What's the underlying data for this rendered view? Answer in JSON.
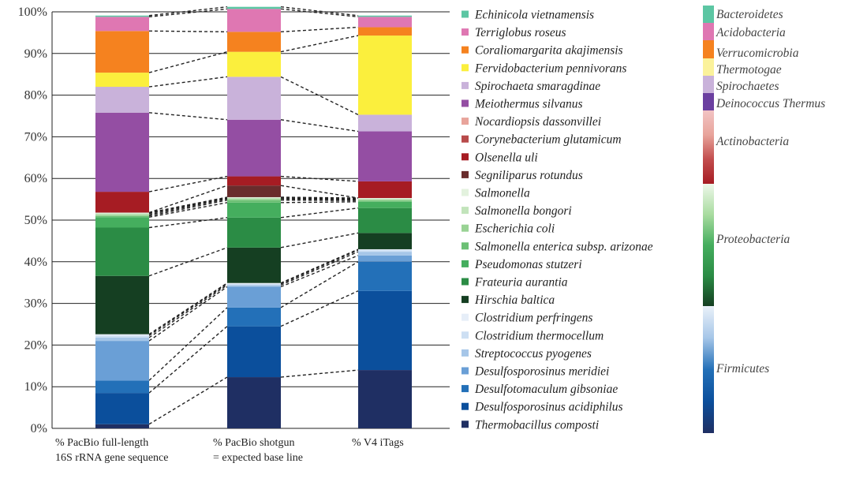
{
  "chart_data": {
    "type": "bar",
    "stacked": true,
    "normalized": true,
    "ylim": [
      0,
      100
    ],
    "yticks": [
      "0%",
      "10%",
      "20%",
      "30%",
      "40%",
      "50%",
      "60%",
      "70%",
      "80%",
      "90%",
      "100%"
    ],
    "grid": true,
    "legend_placement": "right",
    "connector_lines": "dashed lines join matching segment boundaries of adjacent bars",
    "categories": [
      [
        "% PacBio full-length",
        "16S rRNA gene sequence"
      ],
      [
        "% PacBio shotgun",
        "= expected base line"
      ],
      [
        "% V4 iTags"
      ]
    ],
    "series": [
      {
        "name": "Thermobacillus composti",
        "color": "#1f2f63",
        "values": [
          1.0,
          12.3,
          14.0
        ]
      },
      {
        "name": "Desulfosporosinus acidiphilus",
        "color": "#0b4f9c",
        "values": [
          7.5,
          12.2,
          19.0
        ]
      },
      {
        "name": "Desulfotomaculum gibsoniae",
        "color": "#2370b8",
        "values": [
          3.0,
          4.5,
          7.0
        ]
      },
      {
        "name": "Desulfosporosinus meridiei",
        "color": "#6a9fd6",
        "values": [
          9.5,
          5.0,
          1.5
        ]
      },
      {
        "name": "Streptococcus pyogenes",
        "color": "#a6c6e8",
        "values": [
          0.8,
          0.4,
          0.9
        ]
      },
      {
        "name": "Clostridium thermocellum",
        "color": "#cddff3",
        "values": [
          0.5,
          0.3,
          0.4
        ]
      },
      {
        "name": "Clostridium perfringens",
        "color": "#e6eef8",
        "values": [
          0.3,
          0.2,
          0.2
        ]
      },
      {
        "name": "Hirschia baltica",
        "color": "#153f22",
        "values": [
          14.0,
          8.5,
          3.9
        ]
      },
      {
        "name": "Frateuria aurantia",
        "color": "#2b8c45",
        "values": [
          11.6,
          7.2,
          6.0
        ]
      },
      {
        "name": "Pseudomonas stutzeri",
        "color": "#45ae5e",
        "values": [
          2.5,
          3.6,
          1.5
        ]
      },
      {
        "name": "Salmonella enterica subsp. arizonae",
        "color": "#6cc075",
        "values": [
          0.3,
          0.6,
          0.3
        ]
      },
      {
        "name": "Escherichia coli",
        "color": "#99d394",
        "values": [
          0.3,
          0.3,
          0.2
        ]
      },
      {
        "name": "Salmonella bongori",
        "color": "#c2e4bb",
        "values": [
          0.3,
          0.2,
          0.2
        ]
      },
      {
        "name": "Salmonella",
        "color": "#e3f2de",
        "values": [
          0.2,
          0.2,
          0.2
        ]
      },
      {
        "name": "Segniliparus rotundus",
        "color": "#6a2c2c",
        "values": [
          0.0,
          2.8,
          0.0
        ]
      },
      {
        "name": "Olsenella uli",
        "color": "#a61c23",
        "values": [
          5.0,
          2.2,
          4.0
        ]
      },
      {
        "name": "Corynebacterium glutamicum",
        "color": "#b84a4a",
        "values": [
          0.0,
          0.0,
          0.0
        ]
      },
      {
        "name": "Nocardiopsis dassonvillei",
        "color": "#e8a49b",
        "values": [
          0.0,
          0.0,
          0.0
        ]
      },
      {
        "name": "Meiothermus silvanus",
        "color": "#944ea3",
        "values": [
          19.0,
          13.6,
          12.0
        ]
      },
      {
        "name": "Spirochaeta smaragdinae",
        "color": "#c9b2da",
        "values": [
          6.2,
          10.3,
          4.0
        ]
      },
      {
        "name": "Fervidobacterium pennivorans",
        "color": "#fbef3d",
        "values": [
          3.4,
          6.0,
          19.0
        ]
      },
      {
        "name": "Coraliomargarita akajimensis",
        "color": "#f5821f",
        "values": [
          10.0,
          4.8,
          2.0
        ]
      },
      {
        "name": "Terriglobus roseus",
        "color": "#df77b2",
        "values": [
          3.4,
          5.5,
          2.5
        ]
      },
      {
        "name": "Echinicola vietnamensis",
        "color": "#5cc6a3",
        "values": [
          0.3,
          0.5,
          0.3
        ]
      }
    ],
    "phyla": [
      {
        "name": "Bacteroidetes",
        "color": "#5cc6a3"
      },
      {
        "name": "Acidobacteria",
        "color": "#df77b2"
      },
      {
        "name": "Verrucomicrobia",
        "color": "#f5821f"
      },
      {
        "name": "Thermotogae",
        "color": "#fbf29b"
      },
      {
        "name": "Spirochaetes",
        "color": "#c9b2da"
      },
      {
        "name": "Deinococcus Thermus",
        "color": "#6b3fa0"
      },
      {
        "name": "Actinobacteria",
        "colors": [
          "#f2c4c4",
          "#e8a49b",
          "#c24d4d",
          "#a61c23"
        ]
      },
      {
        "name": "Proteobacteria",
        "colors": [
          "#eef7ea",
          "#a9dca0",
          "#45ae5e",
          "#2b8c45",
          "#153f22"
        ]
      },
      {
        "name": "Firmicutes",
        "colors": [
          "#eaf1f9",
          "#a6c6e8",
          "#2370b8",
          "#0b4f9c",
          "#1f2f63"
        ]
      }
    ]
  }
}
